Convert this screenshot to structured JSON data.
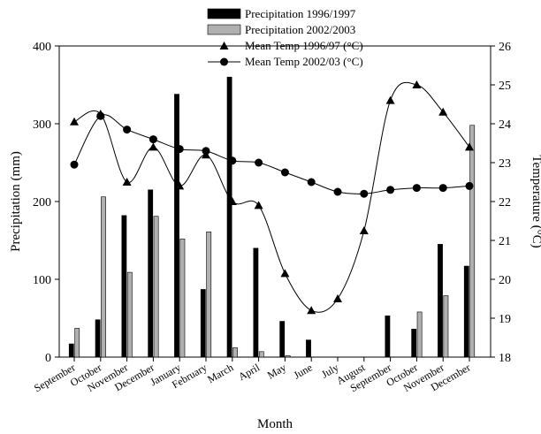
{
  "chart_data": {
    "type": "bar+line",
    "categories": [
      "September",
      "October",
      "November",
      "December",
      "January",
      "February",
      "March",
      "April",
      "May",
      "June",
      "July",
      "August",
      "September",
      "October",
      "November",
      "December"
    ],
    "xlabel": "Month",
    "ylabel_left": "Precipitation (mm)",
    "ylabel_right": "Temperature (°C)",
    "ylim_left": [
      0,
      400
    ],
    "ylim_right": [
      18,
      26
    ],
    "yticks_left": [
      "0",
      "100",
      "200",
      "300",
      "400"
    ],
    "yticks_right": [
      "18",
      "19",
      "20",
      "21",
      "22",
      "23",
      "24",
      "25",
      "26"
    ],
    "legend_position": "top-center",
    "bar_series": [
      {
        "name": "Precipitation 1996/1997",
        "color": "#000000",
        "values": [
          17,
          48,
          182,
          215,
          338,
          87,
          360,
          140,
          46,
          22,
          0,
          0,
          53,
          36,
          145,
          117
        ]
      },
      {
        "name": "Precipitation 2002/2003",
        "color": "#b0b0b0",
        "values": [
          37,
          206,
          109,
          181,
          152,
          161,
          12,
          7,
          2,
          0,
          0,
          0,
          0,
          58,
          79,
          298
        ]
      }
    ],
    "line_series": [
      {
        "name": "Mean Temp 1996/97 (°C)",
        "marker": "triangle",
        "values": [
          24.05,
          24.25,
          22.5,
          23.4,
          22.4,
          23.2,
          22.0,
          21.9,
          20.15,
          19.2,
          19.5,
          21.25,
          24.6,
          25.0,
          24.3,
          23.4
        ]
      },
      {
        "name": "Mean Temp 2002/03  (°C)",
        "marker": "circle",
        "values": [
          22.95,
          24.2,
          23.85,
          23.6,
          23.35,
          23.3,
          23.05,
          23.0,
          22.75,
          22.5,
          22.25,
          22.2,
          22.3,
          22.35,
          22.35,
          22.4
        ]
      }
    ]
  }
}
